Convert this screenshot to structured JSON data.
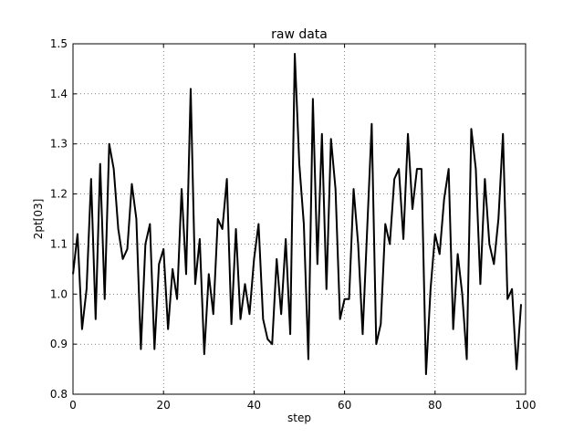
{
  "chart_data": {
    "type": "line",
    "title": "raw data",
    "xlabel": "step",
    "ylabel": "2pt[03]",
    "xlim": [
      0,
      100
    ],
    "ylim": [
      0.8,
      1.5
    ],
    "xticks": [
      0,
      20,
      40,
      60,
      80,
      100
    ],
    "yticks": [
      0.8,
      0.9,
      1.0,
      1.1,
      1.2,
      1.3,
      1.4,
      1.5
    ],
    "grid": true,
    "legend": "none",
    "series": [
      {
        "color": "#000000",
        "x": [
          0,
          1,
          2,
          3,
          4,
          5,
          6,
          7,
          8,
          9,
          10,
          11,
          12,
          13,
          14,
          15,
          16,
          17,
          18,
          19,
          20,
          21,
          22,
          23,
          24,
          25,
          26,
          27,
          28,
          29,
          30,
          31,
          32,
          33,
          34,
          35,
          36,
          37,
          38,
          39,
          40,
          41,
          42,
          43,
          44,
          45,
          46,
          47,
          48,
          49,
          50,
          51,
          52,
          53,
          54,
          55,
          56,
          57,
          58,
          59,
          60,
          61,
          62,
          63,
          64,
          65,
          66,
          67,
          68,
          69,
          70,
          71,
          72,
          73,
          74,
          75,
          76,
          77,
          78,
          79,
          80,
          81,
          82,
          83,
          84,
          85,
          86,
          87,
          88,
          89,
          90,
          91,
          92,
          93,
          94,
          95,
          96,
          97,
          98,
          99
        ],
        "y": [
          1.04,
          1.12,
          0.93,
          1.01,
          1.23,
          0.95,
          1.26,
          0.99,
          1.3,
          1.25,
          1.13,
          1.07,
          1.09,
          1.22,
          1.15,
          0.89,
          1.1,
          1.14,
          0.89,
          1.06,
          1.09,
          0.93,
          1.05,
          0.99,
          1.21,
          1.04,
          1.41,
          1.02,
          1.11,
          0.88,
          1.04,
          0.96,
          1.15,
          1.13,
          1.23,
          0.94,
          1.13,
          0.95,
          1.02,
          0.96,
          1.07,
          1.14,
          0.95,
          0.91,
          0.9,
          1.07,
          0.96,
          1.11,
          0.92,
          1.48,
          1.26,
          1.14,
          0.87,
          1.39,
          1.06,
          1.32,
          1.01,
          1.31,
          1.21,
          0.95,
          0.99,
          0.99,
          1.21,
          1.1,
          0.92,
          1.13,
          1.34,
          0.9,
          0.94,
          1.14,
          1.1,
          1.23,
          1.25,
          1.11,
          1.32,
          1.17,
          1.25,
          1.25,
          0.84,
          1.01,
          1.12,
          1.08,
          1.19,
          1.25,
          0.93,
          1.08,
          1.0,
          0.87,
          1.33,
          1.25,
          1.02,
          1.23,
          1.1,
          1.06,
          1.15,
          1.32,
          0.99,
          1.01,
          0.85,
          0.98
        ]
      }
    ]
  }
}
